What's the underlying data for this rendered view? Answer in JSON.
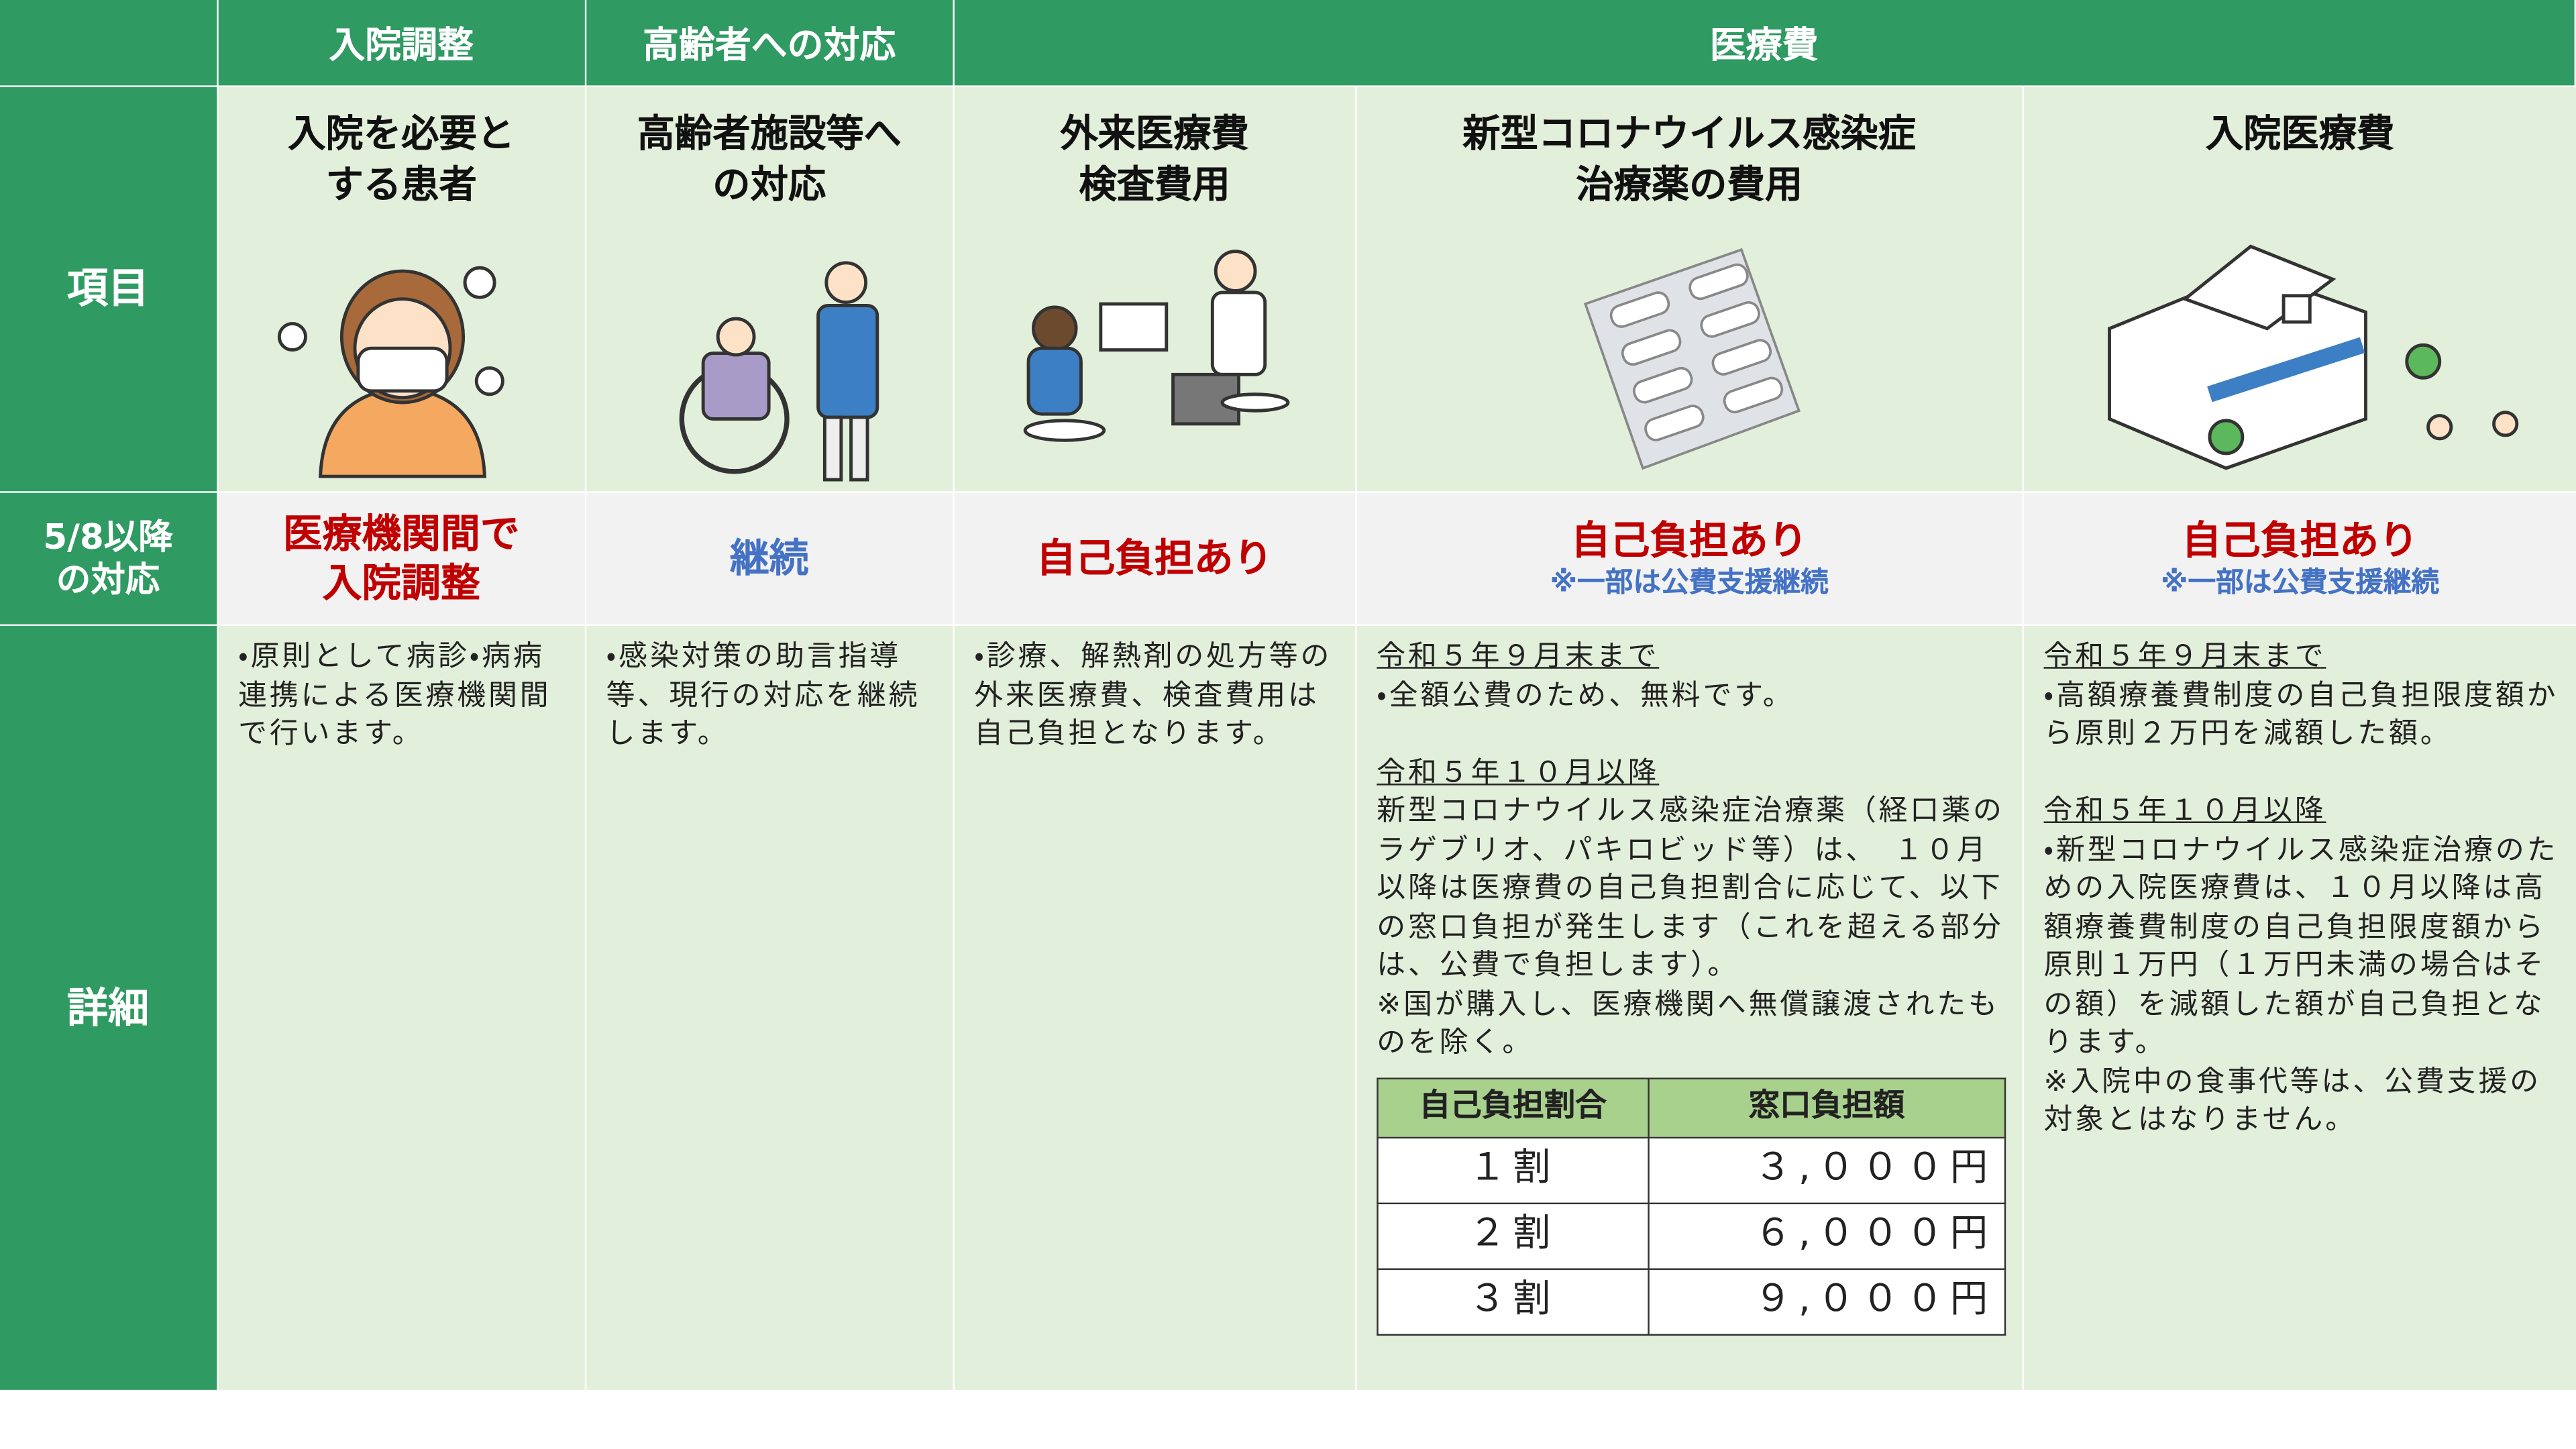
{
  "header": {
    "groups": [
      "入院調整",
      "高齢者への対応",
      "医療費"
    ]
  },
  "row_labels": {
    "item": "項目",
    "policy": [
      "5/8以降",
      "の対応"
    ],
    "detail": "詳細"
  },
  "columns": [
    {
      "item": [
        "入院を必要と",
        "する患者"
      ],
      "policy": {
        "text": [
          "医療機関間で",
          "入院調整"
        ],
        "color": "#c00000"
      },
      "detail": [
        {
          "text": "・原則として病診・病病連携による医療機関間で行います。"
        }
      ]
    },
    {
      "item": [
        "高齢者施設等へ",
        "の対応"
      ],
      "policy": {
        "text": [
          "継続"
        ],
        "color": "#4472c4"
      },
      "detail": [
        {
          "text": "・感染対策の助言指導等、現行の対応を継続します。"
        }
      ]
    },
    {
      "item": [
        "外来医療費",
        "検査費用"
      ],
      "policy": {
        "text": [
          "自己負担あり"
        ],
        "color": "#c00000"
      },
      "detail": [
        {
          "text": "・診療、解熱剤の処方等の外来医療費、検査費用は自己負担となります。"
        }
      ]
    },
    {
      "item": [
        "新型コロナウイルス感染症",
        "治療薬の費用"
      ],
      "policy": {
        "text": [
          "自己負担あり"
        ],
        "color": "#c00000",
        "note": "※一部は公費支援継続"
      },
      "detail": [
        {
          "text": "令和５年９月末まで",
          "underline": true
        },
        {
          "text": "・全額公費のため、無料です。"
        },
        {
          "text": "令和５年１０月以降",
          "underline": true
        },
        {
          "text": "新型コロナウイルス感染症治療薬（経口薬のラゲブリオ、パキロビッド等）は、　１０月以降は医療費の自己負担割合に応じて、以下の窓口負担が発生します（これを超える部分は、公費で負担します）。"
        },
        {
          "text": "※国が購入し、医療機関へ無償譲渡されたものを除く。"
        }
      ],
      "table": {
        "headers": [
          "自己負担割合",
          "窓口負担額"
        ],
        "rows": [
          [
            "１割",
            "３,０００円"
          ],
          [
            "２割",
            "６,０００円"
          ],
          [
            "３割",
            "９,０００円"
          ]
        ]
      }
    },
    {
      "item": [
        "入院医療費"
      ],
      "policy": {
        "text": [
          "自己負担あり"
        ],
        "color": "#c00000",
        "note": "※一部は公費支援継続"
      },
      "detail": [
        {
          "text": "令和５年９月末まで",
          "underline": true
        },
        {
          "text": "・高額療養費制度の自己負担限度額から原則２万円を減額した額。"
        },
        {
          "text": "令和５年１０月以降",
          "underline": true
        },
        {
          "text": "・新型コロナウイルス感染症治療のための入院医療費は、１０月以降は高額療養費制度の自己負担限度額から原則１万円（１万円未満の場合はその額）を減額した額が自己負担となります。"
        },
        {
          "text": "※入院中の食事代等は、公費支援の対象とはなりません。"
        }
      ]
    }
  ]
}
